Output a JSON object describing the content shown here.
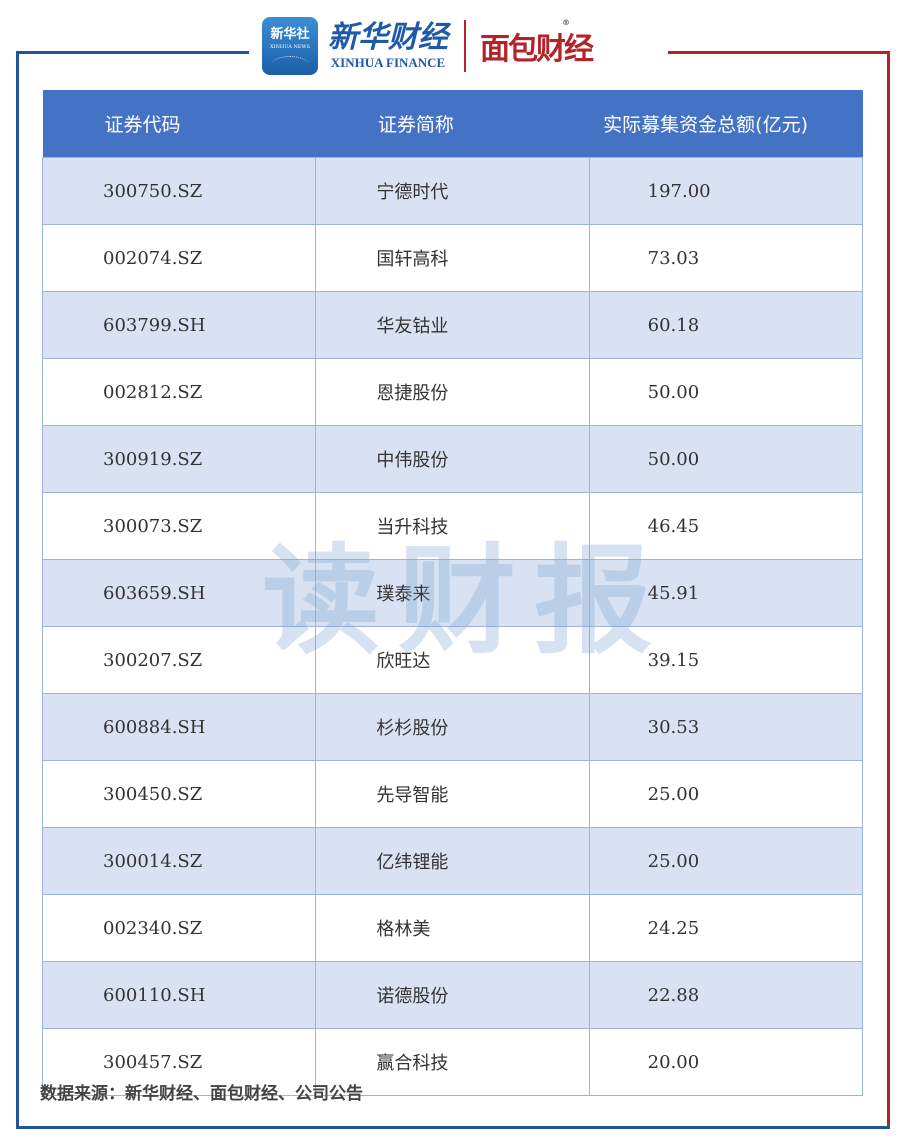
{
  "header": {
    "xinhua_badge_text": "新华社",
    "xinhua_badge_en": "XINHUA NEWS",
    "xinhua_finance_cn": "新华财经",
    "xinhua_finance_en": "XINHUA FINANCE",
    "mianbao_logo": "面包财经",
    "registered_mark": "®"
  },
  "colors": {
    "header_bg": "#4472c4",
    "row_alt": "#d9e2f3",
    "frame_blue": "#24549a",
    "frame_red": "#b5232a"
  },
  "watermark": "读财报",
  "chart_data": {
    "type": "table",
    "columns": [
      "证券代码",
      "证券简称",
      "实际募集资金总额(亿元)"
    ],
    "rows": [
      [
        "300750.SZ",
        "宁德时代",
        "197.00"
      ],
      [
        "002074.SZ",
        "国轩高科",
        "73.03"
      ],
      [
        "603799.SH",
        "华友钴业",
        "60.18"
      ],
      [
        "002812.SZ",
        "恩捷股份",
        "50.00"
      ],
      [
        "300919.SZ",
        "中伟股份",
        "50.00"
      ],
      [
        "300073.SZ",
        "当升科技",
        "46.45"
      ],
      [
        "603659.SH",
        "璞泰来",
        "45.91"
      ],
      [
        "300207.SZ",
        "欣旺达",
        "39.15"
      ],
      [
        "600884.SH",
        "杉杉股份",
        "30.53"
      ],
      [
        "300450.SZ",
        "先导智能",
        "25.00"
      ],
      [
        "300014.SZ",
        "亿纬锂能",
        "25.00"
      ],
      [
        "002340.SZ",
        "格林美",
        "24.25"
      ],
      [
        "600110.SH",
        "诺德股份",
        "22.88"
      ],
      [
        "300457.SZ",
        "赢合科技",
        "20.00"
      ]
    ]
  },
  "footer": {
    "source": "数据来源：新华财经、面包财经、公司公告"
  }
}
